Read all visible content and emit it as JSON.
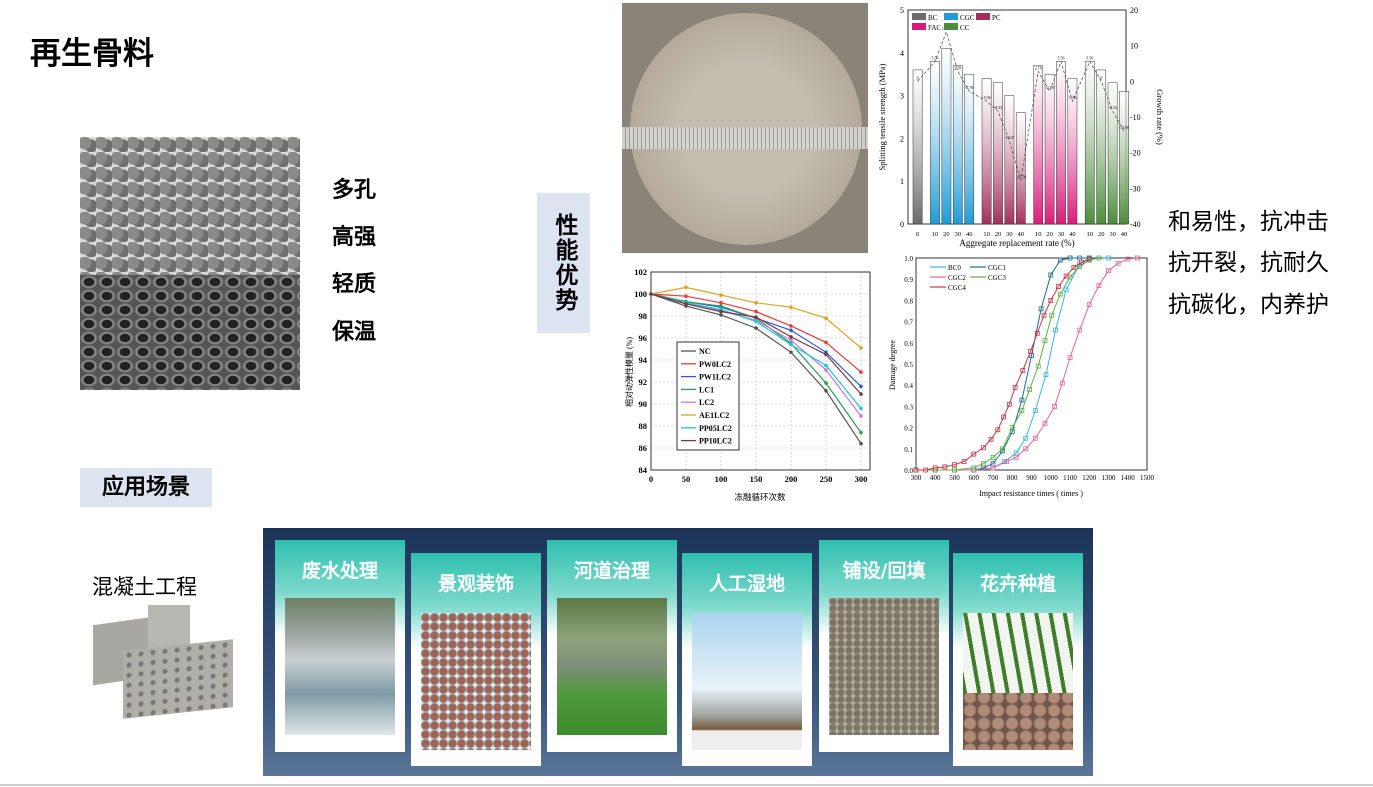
{
  "slide": {
    "title": "再生骨料",
    "features": [
      "多孔",
      "高强",
      "轻质",
      "保温"
    ],
    "advantage_label": "性能优势",
    "properties": [
      "和易性，抗冲击",
      "抗开裂，抗耐久",
      "抗碳化，内养护"
    ],
    "scene_label": "应用场景",
    "concrete_label": "混凝土工程",
    "applications": [
      "废水处理",
      "景观装饰",
      "河道治理",
      "人工湿地",
      "铺设/回填",
      "花卉种植"
    ]
  },
  "chart_data": [
    {
      "type": "bar",
      "xlabel": "Aggregate replacement rate (%)",
      "ylabel": "Splitting tensile strength (MPa)",
      "y2label": "Growth rate (%)",
      "ylim": [
        0,
        5
      ],
      "y2lim": [
        -40,
        20
      ],
      "yticks": [
        0,
        1,
        2,
        3,
        4,
        5
      ],
      "y2ticks": [
        -40,
        -30,
        -20,
        -10,
        0,
        10,
        20
      ],
      "legend": [
        "BC",
        "CGC",
        "PC",
        "FAC",
        "CC"
      ],
      "legend_placement": "top-left",
      "colors": {
        "BC": "#6b6b6b",
        "CGC": "#1f9bd6",
        "PC": "#a3305c",
        "FAC": "#d91c7c",
        "CC": "#4d8c3c"
      },
      "groups": [
        {
          "name": "BC",
          "categories": [
            "0"
          ],
          "values": [
            3.6
          ],
          "growth": [
            0
          ],
          "growth_labels": [
            "0"
          ]
        },
        {
          "name": "CGC",
          "categories": [
            "10",
            "20",
            "30",
            "40"
          ],
          "values": [
            3.8,
            4.1,
            3.7,
            3.5
          ],
          "growth": [
            5.56,
            13.89,
            2.78,
            -2.78
          ],
          "growth_labels": [
            "5.56",
            "13.89",
            "2.78",
            "-2.78"
          ]
        },
        {
          "name": "PC",
          "categories": [
            "10",
            "20",
            "30",
            "40"
          ],
          "values": [
            3.4,
            3.3,
            3.0,
            2.6
          ],
          "growth": [
            -5.56,
            -8.33,
            -16.67,
            -27.78
          ],
          "growth_labels": [
            "-5.56",
            "-8.33",
            "-16.67",
            "-27.78"
          ]
        },
        {
          "name": "FAC",
          "categories": [
            "10",
            "20",
            "30",
            "40"
          ],
          "values": [
            3.7,
            3.5,
            3.8,
            3.4
          ],
          "growth": [
            2.78,
            -2.78,
            5.56,
            -5.56
          ],
          "growth_labels": [
            "2.78",
            "-2.78",
            "5.56",
            "-5.56"
          ]
        },
        {
          "name": "CC",
          "categories": [
            "10",
            "20",
            "30",
            "40"
          ],
          "values": [
            3.8,
            3.6,
            3.3,
            3.1
          ],
          "growth": [
            5.56,
            0,
            -8.33,
            -13.89
          ],
          "growth_labels": [
            "5.56",
            "0",
            "-8.33",
            "-13.89"
          ]
        }
      ]
    },
    {
      "type": "line",
      "xlabel": "冻融循环次数",
      "ylabel": "相对动弹性模量 (%)",
      "xlim": [
        0,
        300
      ],
      "ylim": [
        84,
        102
      ],
      "xticks": [
        0,
        50,
        100,
        150,
        200,
        250,
        300
      ],
      "yticks": [
        84,
        86,
        88,
        90,
        92,
        94,
        96,
        98,
        100,
        102
      ],
      "grid": true,
      "legend_placement": "bottom-left",
      "x": [
        0,
        50,
        100,
        150,
        200,
        250,
        300
      ],
      "series": [
        {
          "name": "NC",
          "color": "#555555",
          "values": [
            100,
            98.9,
            98.1,
            96.9,
            94.7,
            91.2,
            86.4
          ]
        },
        {
          "name": "PW0LC2",
          "color": "#e83a3a",
          "values": [
            100,
            99.8,
            99.2,
            98.4,
            97.1,
            95.6,
            92.9
          ]
        },
        {
          "name": "PW1LC2",
          "color": "#2a5bd0",
          "values": [
            100,
            99.3,
            98.8,
            97.8,
            96.7,
            94.7,
            91.6
          ]
        },
        {
          "name": "LC1",
          "color": "#2f9a5a",
          "values": [
            100,
            99.3,
            98.9,
            97.8,
            95.5,
            91.9,
            87.4
          ]
        },
        {
          "name": "LC2",
          "color": "#c27ae6",
          "values": [
            100,
            99.2,
            98.5,
            97.6,
            95.8,
            93.1,
            88.9
          ]
        },
        {
          "name": "AE1LC2",
          "color": "#d9a520",
          "values": [
            100,
            100.6,
            99.9,
            99.2,
            98.8,
            97.8,
            95.1
          ]
        },
        {
          "name": "PP05LC2",
          "color": "#1cc6d0",
          "values": [
            100,
            99.2,
            98.6,
            97.5,
            95.4,
            93.5,
            89.6
          ]
        },
        {
          "name": "PP10LC2",
          "color": "#7a3a3a",
          "values": [
            100,
            99.1,
            98.4,
            97.9,
            96.1,
            94.5,
            90.9
          ]
        }
      ]
    },
    {
      "type": "line",
      "xlabel": "Impact resistance times ( times )",
      "ylabel": "Damage degree",
      "xlim": [
        300,
        1500
      ],
      "ylim": [
        0,
        1
      ],
      "xticks": [
        300,
        400,
        500,
        600,
        700,
        800,
        900,
        1000,
        1100,
        1200,
        1300,
        1400,
        1500
      ],
      "yticks": [
        0.0,
        0.1,
        0.2,
        0.3,
        0.4,
        0.5,
        0.6,
        0.7,
        0.8,
        0.9,
        1.0
      ],
      "legend_placement": "top-left",
      "series": [
        {
          "name": "BC0",
          "color": "#3bb3e6",
          "points": [
            [
              300,
              0
            ],
            [
              400,
              0
            ],
            [
              500,
              0
            ],
            [
              600,
              0
            ],
            [
              700,
              0.01
            ],
            [
              760,
              0.04
            ],
            [
              820,
              0.08
            ],
            [
              870,
              0.15
            ],
            [
              920,
              0.28
            ],
            [
              975,
              0.45
            ],
            [
              1025,
              0.66
            ],
            [
              1080,
              0.85
            ],
            [
              1150,
              0.97
            ],
            [
              1200,
              0.995
            ],
            [
              1300,
              1
            ]
          ]
        },
        {
          "name": "CGC1",
          "color": "#1e6a96",
          "points": [
            [
              300,
              0
            ],
            [
              400,
              0
            ],
            [
              500,
              0
            ],
            [
              600,
              0
            ],
            [
              650,
              0.01
            ],
            [
              700,
              0.03
            ],
            [
              750,
              0.09
            ],
            [
              800,
              0.18
            ],
            [
              850,
              0.33
            ],
            [
              900,
              0.54
            ],
            [
              950,
              0.76
            ],
            [
              1000,
              0.92
            ],
            [
              1050,
              0.99
            ],
            [
              1100,
              1
            ],
            [
              1150,
              1
            ],
            [
              1200,
              1
            ]
          ]
        },
        {
          "name": "CGC2",
          "color": "#e0679a",
          "points": [
            [
              300,
              0
            ],
            [
              400,
              0
            ],
            [
              500,
              0
            ],
            [
              600,
              0
            ],
            [
              700,
              0.01
            ],
            [
              770,
              0.04
            ],
            [
              820,
              0.06
            ],
            [
              870,
              0.1
            ],
            [
              920,
              0.15
            ],
            [
              970,
              0.22
            ],
            [
              1020,
              0.3
            ],
            [
              1060,
              0.41
            ],
            [
              1100,
              0.53
            ],
            [
              1150,
              0.66
            ],
            [
              1200,
              0.78
            ],
            [
              1250,
              0.87
            ],
            [
              1300,
              0.94
            ],
            [
              1350,
              0.975
            ],
            [
              1400,
              0.995
            ],
            [
              1450,
              1
            ]
          ]
        },
        {
          "name": "CGC3",
          "color": "#5ab04a",
          "points": [
            [
              300,
              0
            ],
            [
              400,
              0
            ],
            [
              500,
              0
            ],
            [
              600,
              0.01
            ],
            [
              650,
              0.03
            ],
            [
              700,
              0.06
            ],
            [
              750,
              0.1
            ],
            [
              800,
              0.2
            ],
            [
              850,
              0.28
            ],
            [
              890,
              0.38
            ],
            [
              935,
              0.49
            ],
            [
              970,
              0.61
            ],
            [
              1005,
              0.73
            ],
            [
              1050,
              0.83
            ],
            [
              1100,
              0.91
            ],
            [
              1150,
              0.96
            ],
            [
              1200,
              0.99
            ],
            [
              1250,
              1
            ]
          ]
        },
        {
          "name": "CGC4",
          "color": "#c0394a",
          "points": [
            [
              300,
              0
            ],
            [
              350,
              0
            ],
            [
              400,
              0.01
            ],
            [
              450,
              0.015
            ],
            [
              500,
              0.025
            ],
            [
              550,
              0.04
            ],
            [
              600,
              0.075
            ],
            [
              650,
              0.105
            ],
            [
              690,
              0.145
            ],
            [
              725,
              0.19
            ],
            [
              755,
              0.25
            ],
            [
              785,
              0.31
            ],
            [
              815,
              0.39
            ],
            [
              855,
              0.47
            ],
            [
              895,
              0.56
            ],
            [
              930,
              0.645
            ],
            [
              965,
              0.73
            ],
            [
              1000,
              0.8
            ],
            [
              1040,
              0.865
            ],
            [
              1080,
              0.915
            ],
            [
              1120,
              0.955
            ],
            [
              1160,
              0.98
            ],
            [
              1200,
              0.995
            ]
          ]
        }
      ]
    }
  ]
}
